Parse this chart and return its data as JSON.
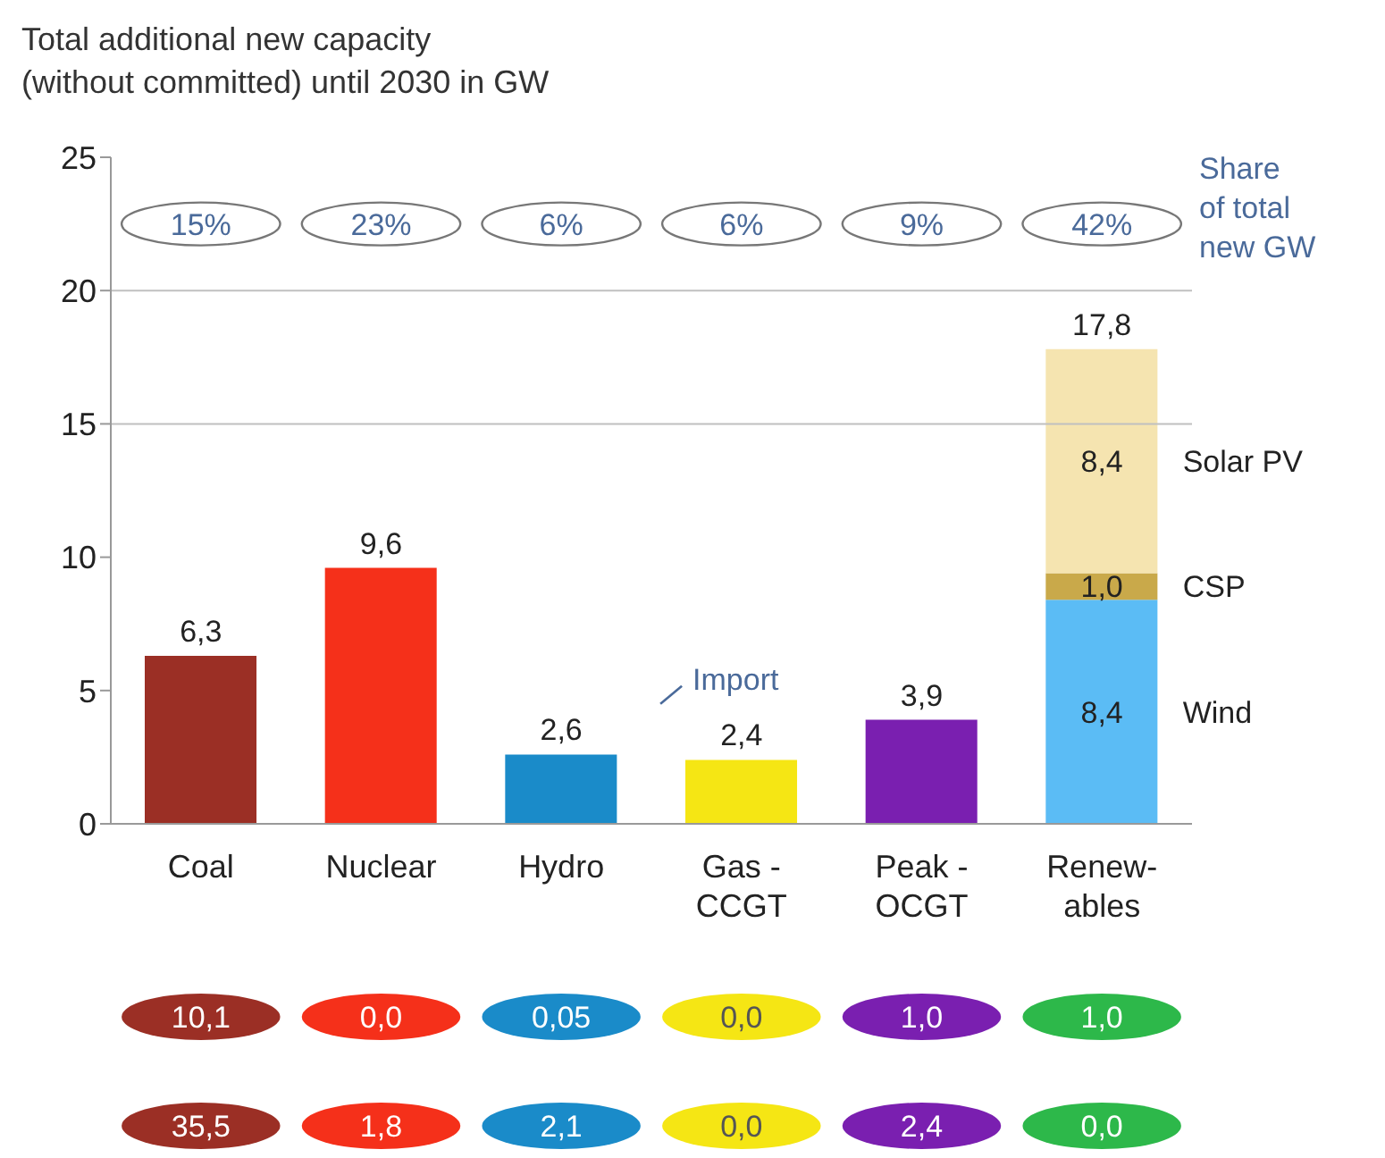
{
  "chart_data": {
    "type": "bar",
    "stacked": true,
    "title": "Total additional new capacity\n(without committed) until 2030 in GW",
    "categories": [
      "Coal",
      "Nuclear",
      "Hydro",
      "Gas -\nCCGT",
      "Peak -\nOCGT",
      "Renew-\nables"
    ],
    "series": [
      {
        "colors": [
          "#9b2f25",
          "#f5301a",
          "#1a8bc9",
          "#f5e614",
          "#7a1fb0",
          "#2db84a"
        ],
        "values": [
          6.3,
          9.6,
          2.6,
          2.4,
          3.9,
          null
        ],
        "value_labels": [
          "6,3",
          "9,6",
          "2,6",
          "2,4",
          "3,9",
          null
        ]
      },
      {
        "name": "Wind",
        "color": "#5bbcf5",
        "values": [
          null,
          null,
          null,
          null,
          null,
          8.4
        ],
        "value_labels": [
          null,
          null,
          null,
          null,
          null,
          "8,4"
        ]
      },
      {
        "name": "CSP",
        "color": "#c9a94a",
        "values": [
          null,
          null,
          null,
          null,
          null,
          1.0
        ],
        "value_labels": [
          null,
          null,
          null,
          null,
          null,
          "1,0"
        ]
      },
      {
        "name": "Solar PV",
        "color": "#f5e4b0",
        "values": [
          null,
          null,
          null,
          null,
          null,
          8.4
        ],
        "value_labels": [
          null,
          null,
          null,
          null,
          null,
          "8,4"
        ]
      }
    ],
    "totals": [
      null,
      null,
      null,
      null,
      null,
      "17,8"
    ],
    "ylim": [
      0,
      25
    ],
    "yticks": [
      0,
      5,
      10,
      15,
      20,
      25
    ],
    "ref_lines": [
      {
        "axis": "y",
        "value": 20,
        "color": "#c0c0c0"
      },
      {
        "axis": "y",
        "value": 15,
        "color": "#c0c0c0"
      }
    ],
    "annotations": [
      "Import",
      "Share of total new GW",
      "15%",
      "23%",
      "6%",
      "6%",
      "9%",
      "42%",
      "10,1",
      "0,0",
      "0,05",
      "0,0",
      "1,0",
      "1,0",
      "35,5",
      "1,8",
      "2,1",
      "0,0",
      "2,4",
      "0,0"
    ]
  }
}
